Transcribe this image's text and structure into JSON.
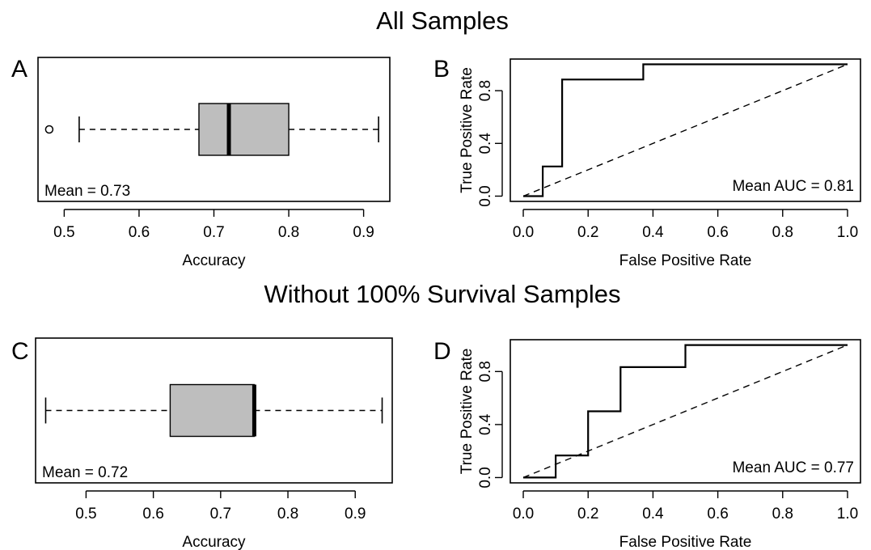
{
  "figure": {
    "title_top": "All Samples",
    "title_bottom": "Without 100% Survival Samples"
  },
  "chart_data": [
    {
      "panel": "A",
      "type": "boxplot",
      "orientation": "horizontal",
      "xlabel": "Accuracy",
      "xlim": [
        0.465,
        0.935
      ],
      "xticks": [
        0.5,
        0.6,
        0.7,
        0.8,
        0.9
      ],
      "xtick_labels": [
        "0.5",
        "0.6",
        "0.7",
        "0.8",
        "0.9"
      ],
      "stats": {
        "whisker_low": 0.52,
        "q1": 0.68,
        "median": 0.72,
        "q3": 0.8,
        "whisker_high": 0.92
      },
      "outliers": [
        0.48
      ],
      "annotation": "Mean = 0.73",
      "colors": {
        "box_fill": "#bebebe"
      }
    },
    {
      "panel": "B",
      "type": "line",
      "xlabel": "False Positive Rate",
      "ylabel": "True Positive Rate",
      "xlim": [
        -0.04,
        1.04
      ],
      "ylim": [
        -0.04,
        1.04
      ],
      "xticks": [
        0.0,
        0.2,
        0.4,
        0.6,
        0.8,
        1.0
      ],
      "xtick_labels": [
        "0.0",
        "0.2",
        "0.4",
        "0.6",
        "0.8",
        "1.0"
      ],
      "yticks": [
        0.0,
        0.4,
        0.8
      ],
      "ytick_labels": [
        "0.0",
        "0.4",
        "0.8"
      ],
      "series": [
        {
          "x": [
            0,
            0.06,
            0.06,
            0.12,
            0.12,
            0.37,
            0.37,
            1.0
          ],
          "y": [
            0,
            0,
            0.225,
            0.225,
            0.885,
            0.885,
            1.0,
            1.0
          ]
        }
      ],
      "reference_line": {
        "x": [
          0,
          1
        ],
        "y": [
          0,
          1
        ],
        "style": "dashed"
      },
      "annotation": "Mean AUC = 0.81"
    },
    {
      "panel": "C",
      "type": "boxplot",
      "orientation": "horizontal",
      "xlabel": "Accuracy",
      "xlim": [
        0.425,
        0.955
      ],
      "xticks": [
        0.5,
        0.6,
        0.7,
        0.8,
        0.9
      ],
      "xtick_labels": [
        "0.5",
        "0.6",
        "0.7",
        "0.8",
        "0.9"
      ],
      "stats": {
        "whisker_low": 0.44,
        "q1": 0.625,
        "median": 0.75,
        "q3": 0.75,
        "whisker_high": 0.94
      },
      "outliers": [],
      "annotation": "Mean = 0.72",
      "colors": {
        "box_fill": "#bebebe"
      }
    },
    {
      "panel": "D",
      "type": "line",
      "xlabel": "False Positive Rate",
      "ylabel": "True Positive Rate",
      "xlim": [
        -0.04,
        1.04
      ],
      "ylim": [
        -0.04,
        1.04
      ],
      "xticks": [
        0.0,
        0.2,
        0.4,
        0.6,
        0.8,
        1.0
      ],
      "xtick_labels": [
        "0.0",
        "0.2",
        "0.4",
        "0.6",
        "0.8",
        "1.0"
      ],
      "yticks": [
        0.0,
        0.4,
        0.8
      ],
      "ytick_labels": [
        "0.0",
        "0.4",
        "0.8"
      ],
      "series": [
        {
          "x": [
            0,
            0.1,
            0.1,
            0.2,
            0.2,
            0.3,
            0.3,
            0.5,
            0.5,
            1.0
          ],
          "y": [
            0,
            0,
            0.167,
            0.167,
            0.5,
            0.5,
            0.833,
            0.833,
            1.0,
            1.0
          ]
        }
      ],
      "reference_line": {
        "x": [
          0,
          1
        ],
        "y": [
          0,
          1
        ],
        "style": "dashed"
      },
      "annotation": "Mean AUC = 0.77"
    }
  ]
}
